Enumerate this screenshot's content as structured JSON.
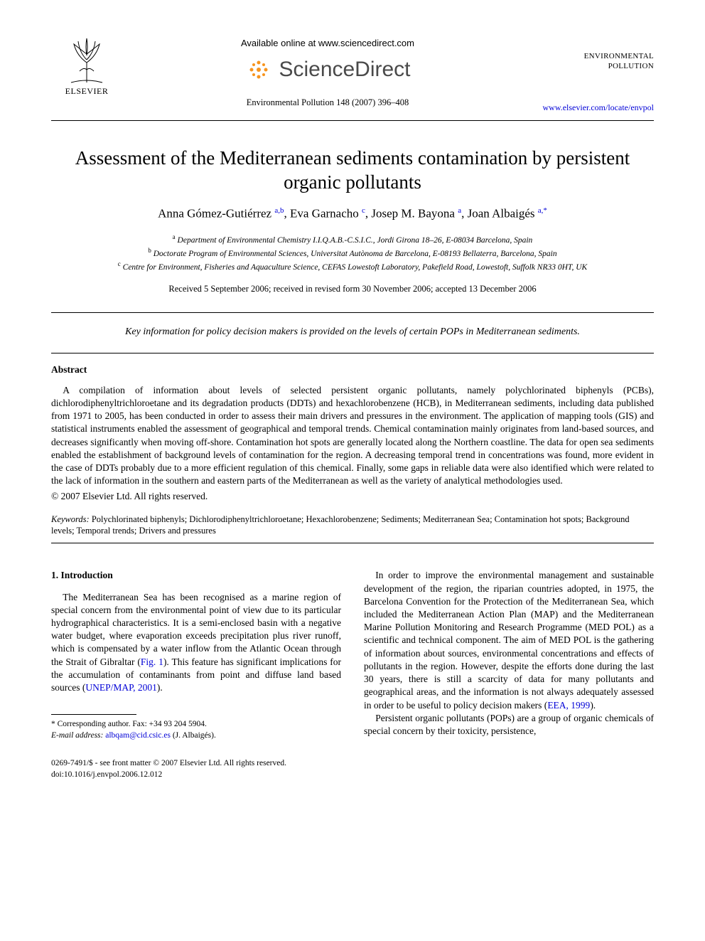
{
  "header": {
    "publisher_label": "ELSEVIER",
    "available_online": "Available online at www.sciencedirect.com",
    "sd_brand": "ScienceDirect",
    "citation_line": "Environmental Pollution 148 (2007) 396–408",
    "journal_name_line1": "ENVIRONMENTAL",
    "journal_name_line2": "POLLUTION",
    "journal_url": "www.elsevier.com/locate/envpol"
  },
  "title": "Assessment of the Mediterranean sediments contamination by persistent organic pollutants",
  "authors_html": "Anna Gómez-Gutiérrez <sup>a,b</sup>, Eva Garnacho <sup>c</sup>, Josep M. Bayona <sup>a</sup>, Joan Albaigés <sup>a,*</sup>",
  "affiliations": {
    "a": "Department of Environmental Chemistry I.I.Q.A.B.-C.S.I.C., Jordi Girona 18–26, E-08034 Barcelona, Spain",
    "b": "Doctorate Program of Environmental Sciences, Universitat Autònoma de Barcelona, E-08193 Bellaterra, Barcelona, Spain",
    "c": "Centre for Environment, Fisheries and Aquaculture Science, CEFAS Lowestoft Laboratory, Pakefield Road, Lowestoft, Suffolk NR33 0HT, UK"
  },
  "received": "Received 5 September 2006; received in revised form 30 November 2006; accepted 13 December 2006",
  "key_info": "Key information for policy decision makers is provided on the levels of certain POPs in Mediterranean sediments.",
  "abstract": {
    "heading": "Abstract",
    "text": "A compilation of information about levels of selected persistent organic pollutants, namely polychlorinated biphenyls (PCBs), dichlorodiphenyltrichloroetane and its degradation products (DDTs) and hexachlorobenzene (HCB), in Mediterranean sediments, including data published from 1971 to 2005, has been conducted in order to assess their main drivers and pressures in the environment. The application of mapping tools (GIS) and statistical instruments enabled the assessment of geographical and temporal trends. Chemical contamination mainly originates from land-based sources, and decreases significantly when moving off-shore. Contamination hot spots are generally located along the Northern coastline. The data for open sea sediments enabled the establishment of background levels of contamination for the region. A decreasing temporal trend in concentrations was found, more evident in the case of DDTs probably due to a more efficient regulation of this chemical. Finally, some gaps in reliable data were also identified which were related to the lack of information in the southern and eastern parts of the Mediterranean as well as the variety of analytical methodologies used.",
    "copyright": "© 2007 Elsevier Ltd. All rights reserved."
  },
  "keywords": {
    "label": "Keywords:",
    "text": " Polychlorinated biphenyls; Dichlorodiphenyltrichloroetane; Hexachlorobenzene; Sediments; Mediterranean Sea; Contamination hot spots; Background levels; Temporal trends; Drivers and pressures"
  },
  "intro": {
    "heading": "1. Introduction",
    "p1_pre": "The Mediterranean Sea has been recognised as a marine region of special concern from the environmental point of view due to its particular hydrographical characteristics. It is a semi-enclosed basin with a negative water budget, where evaporation exceeds precipitation plus river runoff, which is compensated by a water inflow from the Atlantic Ocean through the Strait of Gibraltar (",
    "fig_ref": "Fig. 1",
    "p1_mid": "). This feature has significant implications for the accumulation of contaminants from point and diffuse land based sources (",
    "unep_ref": "UNEP/MAP, 2001",
    "p1_post": ").",
    "p2_pre": "In order to improve the environmental management and sustainable development of the region, the riparian countries adopted, in 1975, the Barcelona Convention for the Protection of the Mediterranean Sea, which included the Mediterranean Action Plan (MAP) and the Mediterranean Marine Pollution Monitoring and Research Programme (MED POL) as a scientific and technical component. The aim of MED POL is the gathering of information about sources, environmental concentrations and effects of pollutants in the region. However, despite the efforts done during the last 30 years, there is still a scarcity of data for many pollutants and geographical areas, and the information is not always adequately assessed in order to be useful to policy decision makers (",
    "eea_ref": "EEA, 1999",
    "p2_post": ").",
    "p3": "Persistent organic pollutants (POPs) are a group of organic chemicals of special concern by their toxicity, persistence,"
  },
  "footnote": {
    "corr": "* Corresponding author. Fax: +34 93 204 5904.",
    "email_label": "E-mail address:",
    "email": "albqam@cid.csic.es",
    "email_who": " (J. Albaigés)."
  },
  "footer": {
    "line1": "0269-7491/$ - see front matter © 2007 Elsevier Ltd. All rights reserved.",
    "line2": "doi:10.1016/j.envpol.2006.12.012"
  },
  "colors": {
    "link": "#0000d6",
    "text": "#000000",
    "sd_gray": "#4a4a4a",
    "sd_orange": "#f7941d"
  }
}
